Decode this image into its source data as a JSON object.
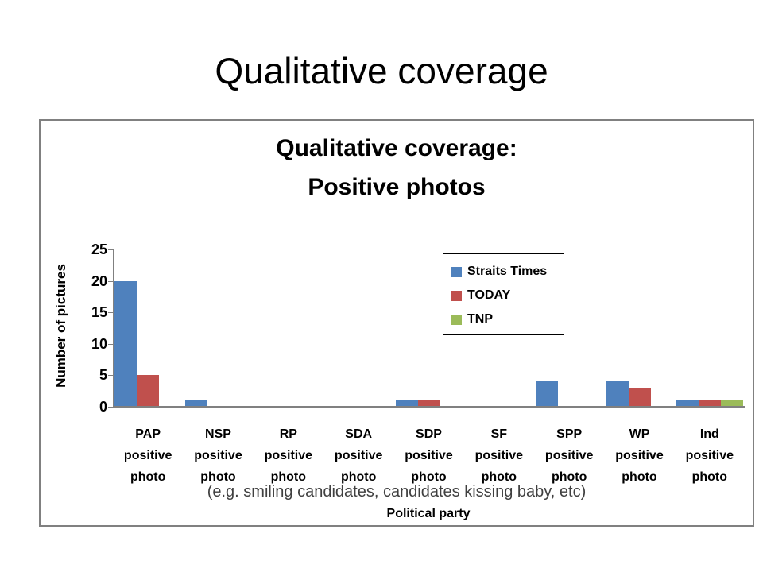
{
  "slide": {
    "title": "Qualitative coverage"
  },
  "chart": {
    "title_lines": [
      "Qualitative coverage:",
      "Positive photos"
    ],
    "caption": "(e.g. smiling candidates, candidates kissing baby, etc)"
  },
  "chart_data": {
    "type": "bar",
    "title": "Qualitative coverage: Positive photos",
    "xlabel": "Political party",
    "ylabel": "Number of pictures",
    "ylim": [
      0,
      25
    ],
    "yticks": [
      0,
      5,
      10,
      15,
      20,
      25
    ],
    "grid": false,
    "legend_position": "upper-right-inside",
    "categories": [
      "PAP positive photo",
      "NSP positive photo",
      "RP positive photo",
      "SDA positive photo",
      "SDP positive photo",
      "SF positive photo",
      "SPP positive photo",
      "WP positive photo",
      "Ind positive photo"
    ],
    "series": [
      {
        "name": "Straits Times",
        "color": "#4F81BD",
        "values": [
          20,
          1,
          0,
          0,
          1,
          0,
          4,
          4,
          1
        ]
      },
      {
        "name": "TODAY",
        "color": "#C0504D",
        "values": [
          5,
          0,
          0,
          0,
          1,
          0,
          0,
          3,
          1
        ]
      },
      {
        "name": "TNP",
        "color": "#9BBB59",
        "values": [
          0,
          0,
          0,
          0,
          0,
          0,
          0,
          0,
          1
        ]
      }
    ],
    "colors": {
      "axis": "#808080",
      "chart_border": "#808080",
      "legend_border": "#000000",
      "caption_text": "#404040"
    }
  }
}
